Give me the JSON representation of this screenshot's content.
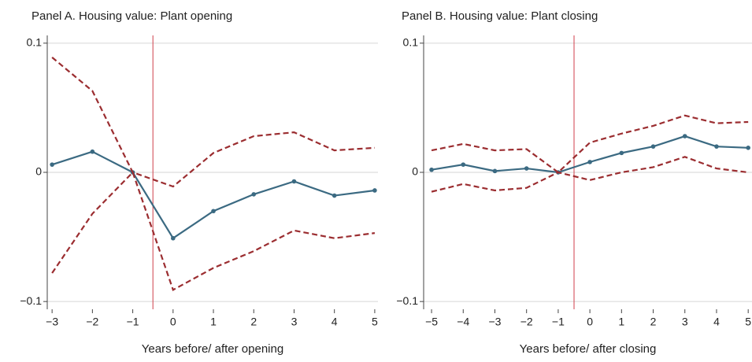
{
  "chart_data": [
    {
      "type": "line",
      "title": "Panel A. Housing value: Plant opening",
      "x_label": "Years before/ after opening",
      "x": [
        -3,
        -2,
        -1,
        0,
        1,
        2,
        3,
        4,
        5
      ],
      "series": [
        {
          "color": "#3b6a82",
          "dash": false,
          "markers": true,
          "values": [
            0.006,
            0.016,
            0,
            -0.051,
            -0.03,
            -0.017,
            -0.007,
            -0.018,
            -0.014
          ]
        },
        {
          "color": "#9b2d30",
          "dash": true,
          "markers": false,
          "values": [
            0.089,
            0.063,
            0,
            -0.011,
            0.015,
            0.028,
            0.031,
            0.017,
            0.019
          ]
        },
        {
          "color": "#9b2d30",
          "dash": true,
          "markers": false,
          "values": [
            -0.078,
            -0.032,
            0,
            -0.091,
            -0.074,
            -0.061,
            -0.045,
            -0.051,
            -0.047
          ]
        }
      ],
      "vline": -0.5,
      "vline_color": "#d0404a",
      "xlim": [
        -3.12,
        5.08
      ],
      "ylim": [
        -0.106,
        0.106
      ],
      "xticks": [
        {
          "value": -3,
          "label": "−3"
        },
        {
          "value": -2,
          "label": "−2"
        },
        {
          "value": -1,
          "label": "−1"
        },
        0,
        1,
        2,
        3,
        4,
        5
      ],
      "yticks": [
        {
          "value": -0.1,
          "label": "−0.1"
        },
        0,
        0.1
      ],
      "grid": true
    },
    {
      "type": "line",
      "title": "Panel B. Housing value: Plant closing",
      "x_label": "Years before/ after closing",
      "x": [
        -5,
        -4,
        -3,
        -2,
        -1,
        0,
        1,
        2,
        3,
        4,
        5
      ],
      "series": [
        {
          "color": "#3b6a82",
          "dash": false,
          "markers": true,
          "values": [
            0.002,
            0.006,
            0.001,
            0.003,
            0,
            0.008,
            0.015,
            0.02,
            0.028,
            0.02,
            0.019
          ]
        },
        {
          "color": "#9b2d30",
          "dash": true,
          "markers": false,
          "values": [
            0.017,
            0.022,
            0.017,
            0.018,
            0,
            0.023,
            0.03,
            0.036,
            0.044,
            0.038,
            0.039
          ]
        },
        {
          "color": "#9b2d30",
          "dash": true,
          "markers": false,
          "values": [
            -0.015,
            -0.009,
            -0.014,
            -0.012,
            0,
            -0.006,
            0,
            0.004,
            0.012,
            0.003,
            0
          ]
        }
      ],
      "vline": -0.5,
      "vline_color": "#d0404a",
      "xlim": [
        -5.25,
        5.12
      ],
      "ylim": [
        -0.106,
        0.106
      ],
      "xticks": [
        {
          "value": -5,
          "label": "−5"
        },
        {
          "value": -4,
          "label": "−4"
        },
        {
          "value": -3,
          "label": "−3"
        },
        {
          "value": -2,
          "label": "−2"
        },
        {
          "value": -1,
          "label": "−1"
        },
        0,
        1,
        2,
        3,
        4,
        5
      ],
      "yticks": [
        {
          "value": -0.1,
          "label": "−0.1"
        },
        0,
        0.1
      ],
      "grid": true
    }
  ]
}
